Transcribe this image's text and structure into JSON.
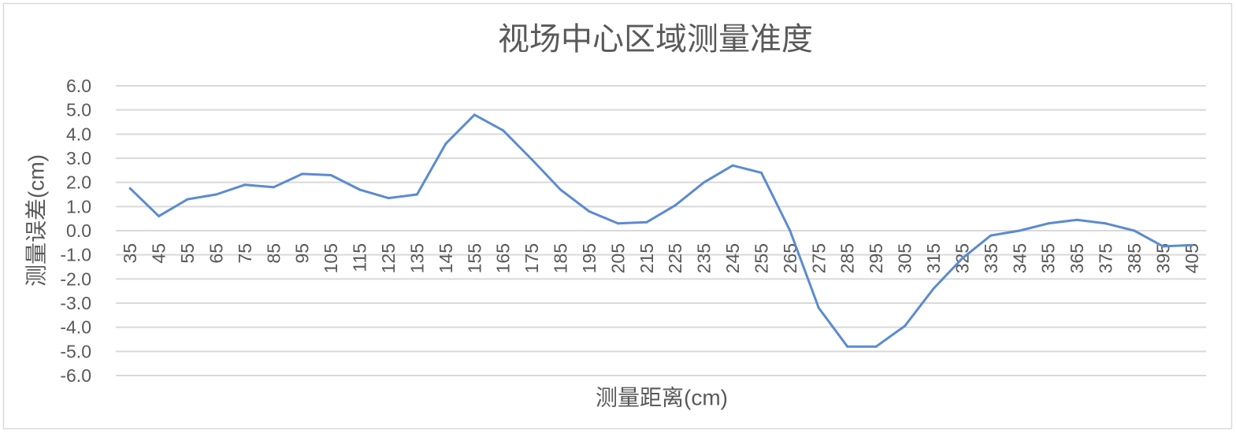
{
  "chart_data": {
    "type": "line",
    "title": "视场中心区域测量准度",
    "xlabel": "测量距离(cm)",
    "ylabel": "测量误差(cm)",
    "categories": [
      "35",
      "45",
      "55",
      "65",
      "75",
      "85",
      "95",
      "105",
      "115",
      "125",
      "135",
      "145",
      "155",
      "165",
      "175",
      "185",
      "195",
      "205",
      "215",
      "225",
      "235",
      "245",
      "255",
      "265",
      "275",
      "285",
      "295",
      "305",
      "315",
      "325",
      "335",
      "345",
      "355",
      "365",
      "375",
      "385",
      "395",
      "405"
    ],
    "series": [
      {
        "values": [
          1.75,
          0.6,
          1.3,
          1.5,
          1.9,
          1.8,
          2.35,
          2.3,
          1.7,
          1.35,
          1.5,
          3.6,
          4.8,
          4.15,
          2.95,
          1.7,
          0.8,
          0.3,
          0.35,
          1.05,
          2.0,
          2.7,
          2.4,
          0.0,
          -3.2,
          -4.8,
          -4.8,
          -3.95,
          -2.4,
          -1.15,
          -0.2,
          0.0,
          0.3,
          0.45,
          0.3,
          0.0,
          -0.65,
          -0.6
        ],
        "color": "#5b8bd0"
      }
    ],
    "yticks": [
      "6.0",
      "5.0",
      "4.0",
      "3.0",
      "2.0",
      "1.0",
      "0.0",
      "-1.0",
      "-2.0",
      "-3.0",
      "-4.0",
      "-5.0",
      "-6.0"
    ],
    "ylim": [
      -6,
      6
    ],
    "grid": true,
    "legend": false
  },
  "colors": {
    "text": "#595959",
    "grid": "#d9d9d9",
    "border": "#d9d9d9",
    "background": "#ffffff"
  }
}
